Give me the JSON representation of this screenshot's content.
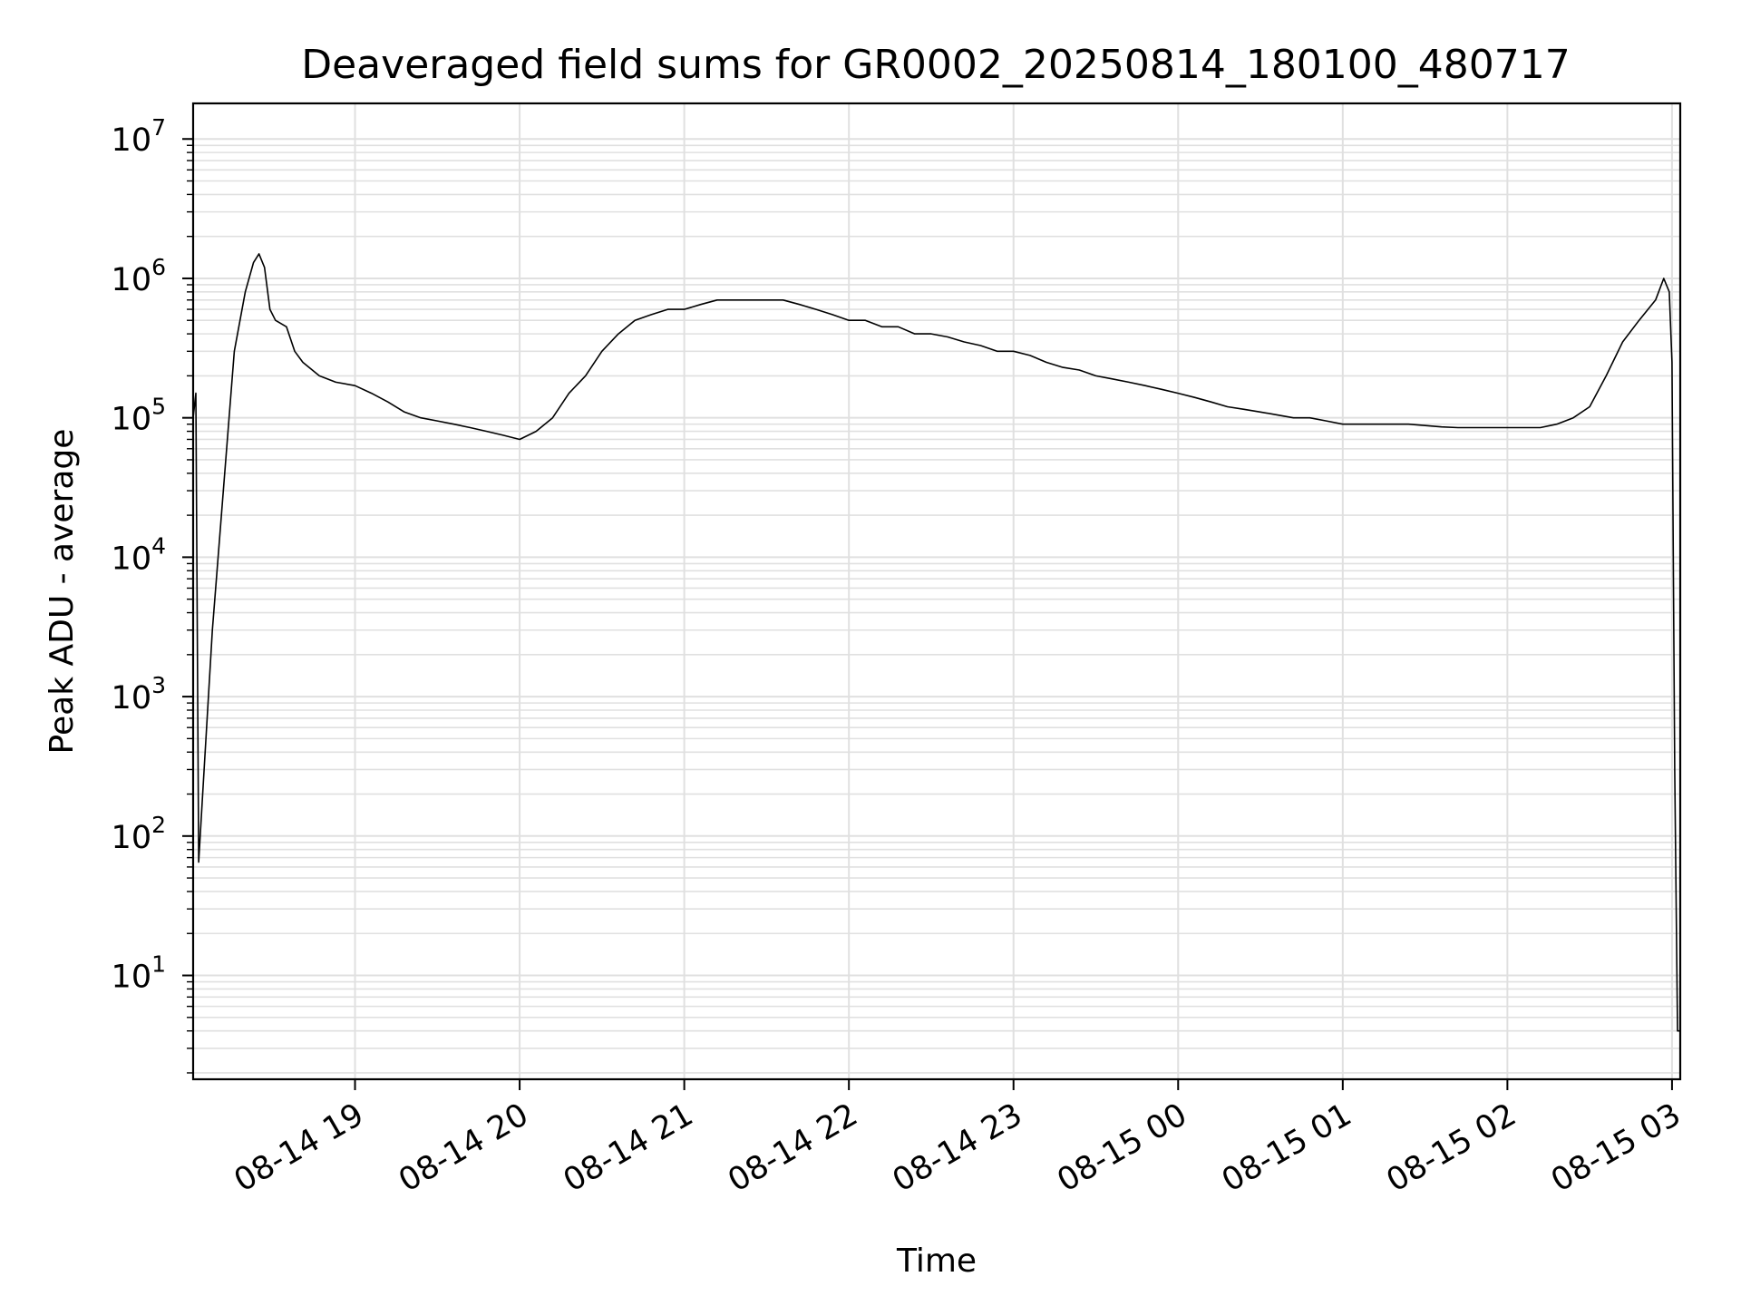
{
  "chart_data": {
    "type": "line",
    "title": "Deaveraged field sums for GR0002_20250814_180100_480717",
    "xlabel": "Time",
    "ylabel": "Peak ADU - average",
    "yscale": "log",
    "xlim": [
      "2025-08-14 18:01",
      "2025-08-15 03:03"
    ],
    "ylim": [
      1.8,
      18000000
    ],
    "grid": true,
    "x_tick_labels": [
      "08-14 19",
      "08-14 20",
      "08-14 21",
      "08-14 22",
      "08-14 23",
      "08-15 00",
      "08-15 01",
      "08-15 02",
      "08-15 03"
    ],
    "y_tick_labels": [
      {
        "base": "10",
        "exponent": "1",
        "value": 10
      },
      {
        "base": "10",
        "exponent": "2",
        "value": 100
      },
      {
        "base": "10",
        "exponent": "3",
        "value": 1000
      },
      {
        "base": "10",
        "exponent": "4",
        "value": 10000
      },
      {
        "base": "10",
        "exponent": "5",
        "value": 100000
      },
      {
        "base": "10",
        "exponent": "6",
        "value": 1000000
      },
      {
        "base": "10",
        "exponent": "7",
        "value": 10000000
      }
    ],
    "line_color": "#000000",
    "grid_color": "#e0e0e0",
    "series": [
      {
        "x": [
          "2025-08-14 18:01",
          "2025-08-14 18:02",
          "2025-08-14 18:03",
          "2025-08-14 18:05",
          "2025-08-14 18:08",
          "2025-08-14 18:12",
          "2025-08-14 18:16",
          "2025-08-14 18:20",
          "2025-08-14 18:23",
          "2025-08-14 18:25",
          "2025-08-14 18:27",
          "2025-08-14 18:29",
          "2025-08-14 18:31",
          "2025-08-14 18:35",
          "2025-08-14 18:38",
          "2025-08-14 18:41",
          "2025-08-14 18:47",
          "2025-08-14 18:53",
          "2025-08-14 19:00",
          "2025-08-14 19:06",
          "2025-08-14 19:12",
          "2025-08-14 19:18",
          "2025-08-14 19:24",
          "2025-08-14 19:30",
          "2025-08-14 19:36",
          "2025-08-14 19:42",
          "2025-08-14 19:48",
          "2025-08-14 19:54",
          "2025-08-14 20:00",
          "2025-08-14 20:06",
          "2025-08-14 20:12",
          "2025-08-14 20:18",
          "2025-08-14 20:24",
          "2025-08-14 20:30",
          "2025-08-14 20:36",
          "2025-08-14 20:42",
          "2025-08-14 20:48",
          "2025-08-14 20:54",
          "2025-08-14 21:00",
          "2025-08-14 21:06",
          "2025-08-14 21:12",
          "2025-08-14 21:18",
          "2025-08-14 21:24",
          "2025-08-14 21:30",
          "2025-08-14 21:36",
          "2025-08-14 21:42",
          "2025-08-14 21:48",
          "2025-08-14 21:54",
          "2025-08-14 22:00",
          "2025-08-14 22:06",
          "2025-08-14 22:12",
          "2025-08-14 22:18",
          "2025-08-14 22:24",
          "2025-08-14 22:30",
          "2025-08-14 22:36",
          "2025-08-14 22:42",
          "2025-08-14 22:48",
          "2025-08-14 22:54",
          "2025-08-14 23:00",
          "2025-08-14 23:06",
          "2025-08-14 23:12",
          "2025-08-14 23:18",
          "2025-08-14 23:24",
          "2025-08-14 23:30",
          "2025-08-14 23:36",
          "2025-08-14 23:42",
          "2025-08-14 23:48",
          "2025-08-14 23:54",
          "2025-08-15 00:00",
          "2025-08-15 00:06",
          "2025-08-15 00:12",
          "2025-08-15 00:18",
          "2025-08-15 00:24",
          "2025-08-15 00:30",
          "2025-08-15 00:36",
          "2025-08-15 00:42",
          "2025-08-15 00:48",
          "2025-08-15 00:54",
          "2025-08-15 01:00",
          "2025-08-15 01:06",
          "2025-08-15 01:12",
          "2025-08-15 01:18",
          "2025-08-15 01:24",
          "2025-08-15 01:30",
          "2025-08-15 01:36",
          "2025-08-15 01:42",
          "2025-08-15 01:48",
          "2025-08-15 01:54",
          "2025-08-15 02:00",
          "2025-08-15 02:06",
          "2025-08-15 02:12",
          "2025-08-15 02:18",
          "2025-08-15 02:24",
          "2025-08-15 02:30",
          "2025-08-15 02:36",
          "2025-08-15 02:42",
          "2025-08-15 02:48",
          "2025-08-15 02:54",
          "2025-08-15 02:57",
          "2025-08-15 02:59",
          "2025-08-15 03:00",
          "2025-08-15 03:01",
          "2025-08-15 03:02",
          "2025-08-15 03:03"
        ],
        "y": [
          100000,
          150000,
          65,
          300,
          3000,
          30000,
          300000,
          800000,
          1300000,
          1500000,
          1200000,
          600000,
          500000,
          450000,
          300000,
          250000,
          200000,
          180000,
          170000,
          150000,
          130000,
          110000,
          100000,
          95000,
          90000,
          85000,
          80000,
          75000,
          70000,
          80000,
          100000,
          150000,
          200000,
          300000,
          400000,
          500000,
          550000,
          600000,
          600000,
          650000,
          700000,
          700000,
          700000,
          700000,
          700000,
          650000,
          600000,
          550000,
          500000,
          500000,
          450000,
          450000,
          400000,
          400000,
          380000,
          350000,
          330000,
          300000,
          300000,
          280000,
          250000,
          230000,
          220000,
          200000,
          190000,
          180000,
          170000,
          160000,
          150000,
          140000,
          130000,
          120000,
          115000,
          110000,
          105000,
          100000,
          100000,
          95000,
          90000,
          90000,
          90000,
          90000,
          90000,
          88000,
          86000,
          85000,
          85000,
          85000,
          85000,
          85000,
          85000,
          90000,
          100000,
          120000,
          200000,
          350000,
          500000,
          700000,
          1000000,
          800000,
          250000,
          300,
          4,
          4
        ]
      }
    ]
  }
}
